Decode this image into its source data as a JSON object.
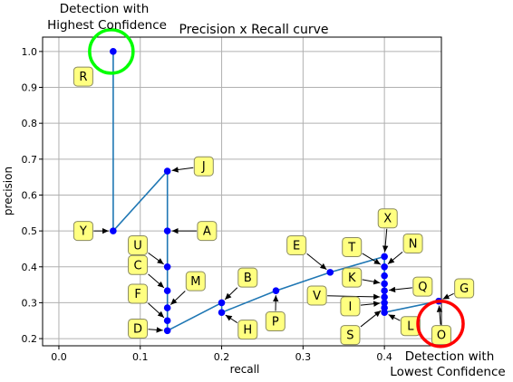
{
  "chart_data": {
    "type": "line",
    "title": "Precision x Recall curve",
    "xlabel": "recall",
    "ylabel": "precision",
    "xlim": [
      -0.02,
      0.47
    ],
    "ylim": [
      0.18,
      1.04
    ],
    "xticks": [
      "0.0",
      "0.1",
      "0.2",
      "0.3",
      "0.4"
    ],
    "yticks": [
      "0.2",
      "0.3",
      "0.4",
      "0.5",
      "0.6",
      "0.7",
      "0.8",
      "0.9",
      "1.0"
    ],
    "grid": true,
    "series": [
      {
        "color": "#1f77b4",
        "marker_color": "#0000ff",
        "points": [
          {
            "x": 0.0667,
            "y": 1.0
          },
          {
            "x": 0.0667,
            "y": 0.5
          },
          {
            "x": 0.1333,
            "y": 0.6667
          },
          {
            "x": 0.1333,
            "y": 0.5
          },
          {
            "x": 0.1333,
            "y": 0.4
          },
          {
            "x": 0.1333,
            "y": 0.3333
          },
          {
            "x": 0.1333,
            "y": 0.2857
          },
          {
            "x": 0.1333,
            "y": 0.25
          },
          {
            "x": 0.1333,
            "y": 0.2222
          },
          {
            "x": 0.2,
            "y": 0.3
          },
          {
            "x": 0.2,
            "y": 0.2727
          },
          {
            "x": 0.2667,
            "y": 0.3333
          },
          {
            "x": 0.3333,
            "y": 0.3846
          },
          {
            "x": 0.4,
            "y": 0.4286
          },
          {
            "x": 0.4,
            "y": 0.4
          },
          {
            "x": 0.4,
            "y": 0.375
          },
          {
            "x": 0.4,
            "y": 0.3529
          },
          {
            "x": 0.4,
            "y": 0.3333
          },
          {
            "x": 0.4,
            "y": 0.3158
          },
          {
            "x": 0.4,
            "y": 0.3
          },
          {
            "x": 0.4,
            "y": 0.2857
          },
          {
            "x": 0.4,
            "y": 0.2727
          },
          {
            "x": 0.4667,
            "y": 0.3043
          }
        ]
      }
    ],
    "labels": [
      {
        "text": "R",
        "bx": 0.03,
        "by": 0.93,
        "tx": 0.0667,
        "ty": 1.0,
        "arrow": false
      },
      {
        "text": "Y",
        "bx": 0.03,
        "by": 0.5,
        "tx": 0.0667,
        "ty": 0.5,
        "arrow": true
      },
      {
        "text": "J",
        "bx": 0.178,
        "by": 0.68,
        "tx": 0.1333,
        "ty": 0.6667,
        "arrow": true
      },
      {
        "text": "A",
        "bx": 0.182,
        "by": 0.5,
        "tx": 0.1333,
        "ty": 0.5,
        "arrow": true
      },
      {
        "text": "U",
        "bx": 0.097,
        "by": 0.46,
        "tx": 0.1333,
        "ty": 0.4,
        "arrow": true
      },
      {
        "text": "C",
        "bx": 0.097,
        "by": 0.405,
        "tx": 0.1333,
        "ty": 0.3333,
        "arrow": true
      },
      {
        "text": "M",
        "bx": 0.168,
        "by": 0.36,
        "tx": 0.1333,
        "ty": 0.2857,
        "arrow": true
      },
      {
        "text": "F",
        "bx": 0.097,
        "by": 0.325,
        "tx": 0.1333,
        "ty": 0.25,
        "arrow": true
      },
      {
        "text": "D",
        "bx": 0.097,
        "by": 0.228,
        "tx": 0.1333,
        "ty": 0.2222,
        "arrow": true
      },
      {
        "text": "B",
        "bx": 0.232,
        "by": 0.37,
        "tx": 0.2,
        "ty": 0.3,
        "arrow": true
      },
      {
        "text": "H",
        "bx": 0.232,
        "by": 0.225,
        "tx": 0.2,
        "ty": 0.2727,
        "arrow": true
      },
      {
        "text": "P",
        "bx": 0.266,
        "by": 0.248,
        "tx": 0.2667,
        "ty": 0.3333,
        "arrow": true
      },
      {
        "text": "E",
        "bx": 0.292,
        "by": 0.46,
        "tx": 0.3333,
        "ty": 0.3846,
        "arrow": true
      },
      {
        "text": "T",
        "bx": 0.36,
        "by": 0.455,
        "tx": 0.4,
        "ty": 0.4,
        "arrow": true
      },
      {
        "text": "X",
        "bx": 0.404,
        "by": 0.535,
        "tx": 0.4,
        "ty": 0.4286,
        "arrow": true
      },
      {
        "text": "N",
        "bx": 0.435,
        "by": 0.465,
        "tx": 0.4,
        "ty": 0.4,
        "arrow": true
      },
      {
        "text": "K",
        "bx": 0.36,
        "by": 0.37,
        "tx": 0.4,
        "ty": 0.3529,
        "arrow": true
      },
      {
        "text": "Q",
        "bx": 0.447,
        "by": 0.345,
        "tx": 0.4,
        "ty": 0.3333,
        "arrow": true
      },
      {
        "text": "V",
        "bx": 0.317,
        "by": 0.32,
        "tx": 0.4,
        "ty": 0.3158,
        "arrow": true
      },
      {
        "text": "I",
        "bx": 0.358,
        "by": 0.29,
        "tx": 0.4,
        "ty": 0.3,
        "arrow": true
      },
      {
        "text": "L",
        "bx": 0.432,
        "by": 0.235,
        "tx": 0.4,
        "ty": 0.2727,
        "arrow": true
      },
      {
        "text": "S",
        "bx": 0.358,
        "by": 0.21,
        "tx": 0.4,
        "ty": 0.2857,
        "arrow": true
      },
      {
        "text": "G",
        "bx": 0.498,
        "by": 0.34,
        "tx": 0.4667,
        "ty": 0.3043,
        "arrow": true
      },
      {
        "text": "O",
        "bx": 0.47,
        "by": 0.21,
        "tx": 0.4667,
        "ty": 0.3043,
        "arrow": true
      }
    ],
    "annotations": {
      "highest": [
        "Detection with",
        "Highest Confidence"
      ],
      "lowest": [
        "Detection with",
        "Lowest Confidence"
      ],
      "highest_color": "#00ff00",
      "lowest_color": "#ff0000"
    }
  }
}
